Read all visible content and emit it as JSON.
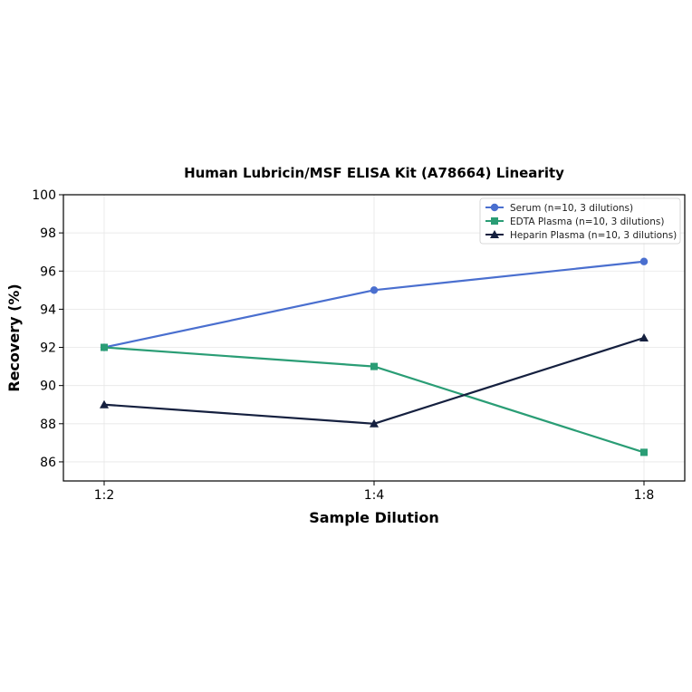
{
  "chart_data": {
    "type": "line",
    "title": "Human Lubricin/MSF ELISA Kit (A78664) Linearity",
    "xlabel": "Sample Dilution",
    "ylabel": "Recovery (%)",
    "categories": [
      "1:2",
      "1:4",
      "1:8"
    ],
    "ylim": [
      85,
      100
    ],
    "yticks": [
      86,
      88,
      90,
      92,
      94,
      96,
      98,
      100
    ],
    "grid": true,
    "legend_position": "top-right",
    "series": [
      {
        "name": "Serum (n=10, 3 dilutions)",
        "values": [
          92,
          95,
          96.5
        ],
        "color": "#4a6fcf",
        "marker": "circle"
      },
      {
        "name": "EDTA Plasma (n=10, 3 dilutions)",
        "values": [
          92,
          91,
          86.5
        ],
        "color": "#2a9d75",
        "marker": "square"
      },
      {
        "name": "Heparin Plasma (n=10, 3 dilutions)",
        "values": [
          89,
          88,
          92.5
        ],
        "color": "#15203f",
        "marker": "triangle"
      }
    ]
  }
}
